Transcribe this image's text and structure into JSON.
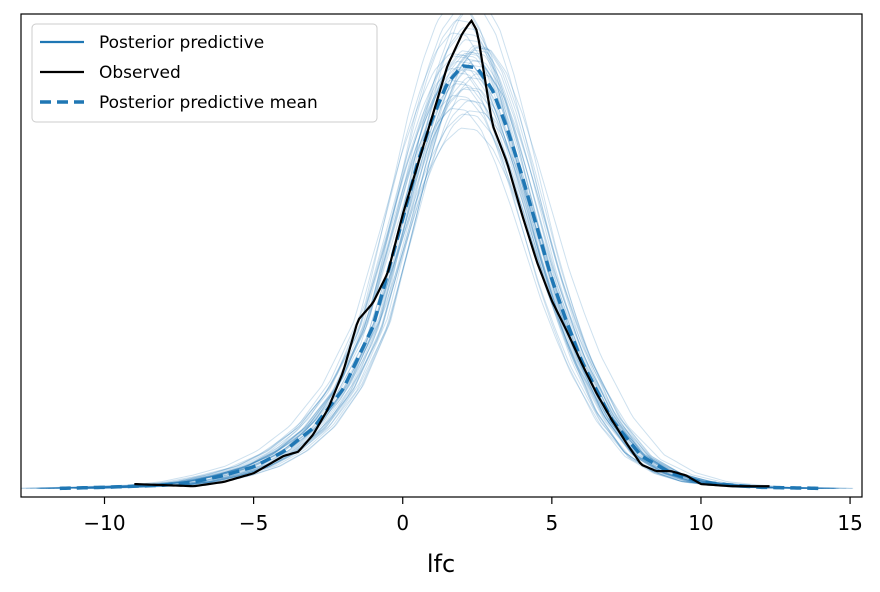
{
  "chart_data": {
    "type": "line",
    "xlabel": "lfc",
    "ylabel": "",
    "xlim": [
      -12.8,
      15.4
    ],
    "ylim": [
      -0.004,
      0.22
    ],
    "xticks": [
      -10,
      -5,
      0,
      5,
      10,
      15
    ],
    "xtick_labels": [
      "−10",
      "−5",
      "0",
      "5",
      "10",
      "15"
    ],
    "yticks_visible": false,
    "grid": false,
    "legend_position": "top-left",
    "colors": {
      "predictive": "#1f77b4",
      "observed": "#000000"
    },
    "series": [
      {
        "name": "Posterior predictive",
        "style": "thin translucent blue lines (many posterior draws)",
        "draw_count": 40
      },
      {
        "name": "Observed",
        "style": "solid black",
        "x": [
          -9.0,
          -8.0,
          -7.0,
          -6.0,
          -5.0,
          -4.5,
          -4.0,
          -3.5,
          -3.0,
          -2.5,
          -2.0,
          -1.5,
          -1.0,
          -0.5,
          0.0,
          0.5,
          1.0,
          1.5,
          2.0,
          2.3,
          2.5,
          3.0,
          3.5,
          4.0,
          4.5,
          5.0,
          5.5,
          6.0,
          6.5,
          7.0,
          7.5,
          8.0,
          8.5,
          9.0,
          9.5,
          10.0,
          11.0,
          12.3
        ],
        "y": [
          0.002,
          0.0015,
          0.001,
          0.003,
          0.007,
          0.011,
          0.015,
          0.017,
          0.025,
          0.037,
          0.054,
          0.078,
          0.086,
          0.1,
          0.127,
          0.15,
          0.173,
          0.196,
          0.211,
          0.217,
          0.212,
          0.169,
          0.151,
          0.127,
          0.105,
          0.087,
          0.073,
          0.058,
          0.044,
          0.032,
          0.021,
          0.011,
          0.008,
          0.008,
          0.006,
          0.002,
          0.001,
          0.001
        ]
      },
      {
        "name": "Posterior predictive mean",
        "style": "dashed blue",
        "x": [
          -11.5,
          -10.0,
          -8.0,
          -7.0,
          -6.0,
          -5.0,
          -4.0,
          -3.0,
          -2.0,
          -1.0,
          0.0,
          0.5,
          1.0,
          1.5,
          2.0,
          2.5,
          3.0,
          3.5,
          4.0,
          4.5,
          5.0,
          5.5,
          6.0,
          7.0,
          8.0,
          9.0,
          10.0,
          11.0,
          12.0,
          14.0
        ],
        "y": [
          0.0,
          0.0005,
          0.0015,
          0.003,
          0.006,
          0.01,
          0.017,
          0.028,
          0.046,
          0.075,
          0.125,
          0.151,
          0.172,
          0.188,
          0.196,
          0.195,
          0.185,
          0.167,
          0.145,
          0.121,
          0.097,
          0.077,
          0.059,
          0.032,
          0.015,
          0.007,
          0.003,
          0.0015,
          0.0005,
          0.0
        ]
      }
    ],
    "legend": [
      {
        "label": "Posterior predictive",
        "style": "solid-blue"
      },
      {
        "label": "Observed",
        "style": "solid-black"
      },
      {
        "label": "Posterior predictive mean",
        "style": "dashed-blue"
      }
    ]
  }
}
